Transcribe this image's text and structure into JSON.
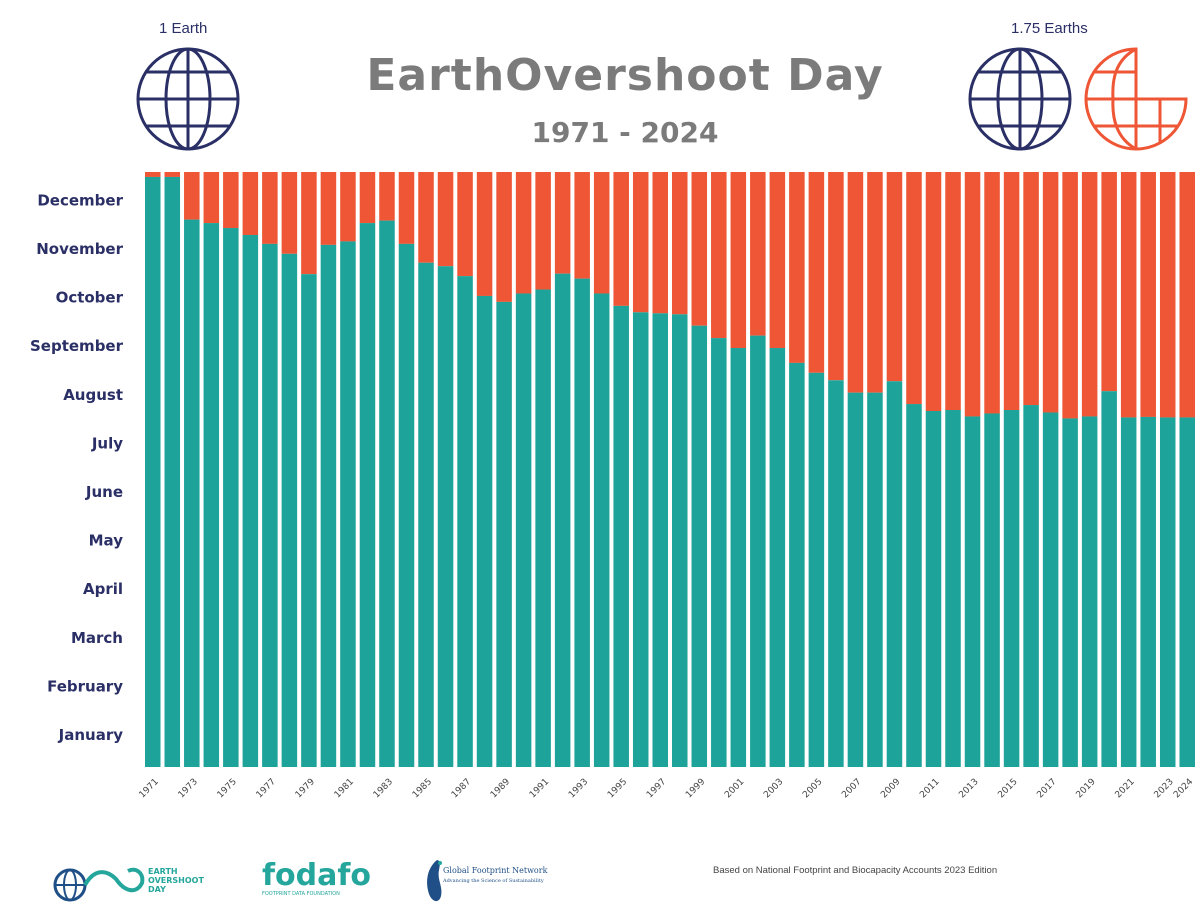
{
  "header": {
    "title": "EarthOvershoot Day",
    "subtitle": "1971 - 2024",
    "left_label": "1 Earth",
    "right_label": "1.75 Earths",
    "left_globe_icon": "globe-icon",
    "right_globe_icon": "globe-icon",
    "partial_globe_icon": "partial-globe-icon"
  },
  "colors": {
    "before_overshoot": "#1ea39a",
    "after_overshoot": "#ee5635",
    "globe_blue": "#2a2f66",
    "globe_orange": "#ee5635",
    "title_gray": "#7b7b7b"
  },
  "chart_data": {
    "type": "bar",
    "stacked": true,
    "title": "EarthOvershoot Day",
    "subtitle": "1971 - 2024",
    "y_axis_labels": [
      "January",
      "February",
      "March",
      "April",
      "May",
      "June",
      "July",
      "August",
      "September",
      "October",
      "November",
      "December"
    ],
    "x_tick_labels": [
      "1971",
      "1973",
      "1975",
      "1977",
      "1979",
      "1981",
      "1983",
      "1985",
      "1987",
      "1989",
      "1991",
      "1993",
      "1995",
      "1997",
      "1999",
      "2001",
      "2003",
      "2005",
      "2007",
      "2009",
      "2011",
      "2013",
      "2015",
      "2017",
      "2019",
      "2021",
      "2023",
      "2024"
    ],
    "x": [
      1971,
      1972,
      1973,
      1974,
      1975,
      1976,
      1977,
      1978,
      1979,
      1980,
      1981,
      1982,
      1983,
      1984,
      1985,
      1986,
      1987,
      1988,
      1989,
      1990,
      1991,
      1992,
      1993,
      1994,
      1995,
      1996,
      1997,
      1998,
      1999,
      2000,
      2001,
      2002,
      2003,
      2004,
      2005,
      2006,
      2007,
      2008,
      2009,
      2010,
      2011,
      2012,
      2013,
      2014,
      2015,
      2016,
      2017,
      2018,
      2019,
      2020,
      2021,
      2022,
      2023,
      2024
    ],
    "values_month": [
      11.9,
      11.9,
      11.04,
      10.97,
      10.87,
      10.73,
      10.55,
      10.35,
      9.94,
      10.53,
      10.6,
      10.97,
      11.02,
      10.55,
      10.17,
      10.1,
      9.9,
      9.5,
      9.38,
      9.55,
      9.63,
      9.95,
      9.85,
      9.55,
      9.3,
      9.17,
      9.15,
      9.13,
      8.9,
      8.65,
      8.45,
      8.7,
      8.45,
      8.15,
      7.95,
      7.8,
      7.55,
      7.55,
      7.78,
      7.32,
      7.18,
      7.2,
      7.07,
      7.13,
      7.2,
      7.3,
      7.15,
      7.03,
      7.07,
      7.58,
      7.05,
      7.06,
      7.05,
      7.05
    ],
    "series": [
      {
        "name": "",
        "color": "#1ea39a"
      },
      {
        "name": "",
        "color": "#ee5635"
      }
    ],
    "ylim": [
      0,
      12
    ],
    "grid": false
  },
  "footer": {
    "logo1_lines": [
      "EARTH",
      "OVERSHOOT",
      "DAY"
    ],
    "logo2_name": "fodafo",
    "logo2_sub": "FOOTPRINT DATA FOUNDATION",
    "logo3_name": "Global Footprint Network",
    "logo3_sub": "Advancing the Science of Sustainability",
    "source": "Based on National Footprint and Biocapacity Accounts 2023 Edition"
  }
}
